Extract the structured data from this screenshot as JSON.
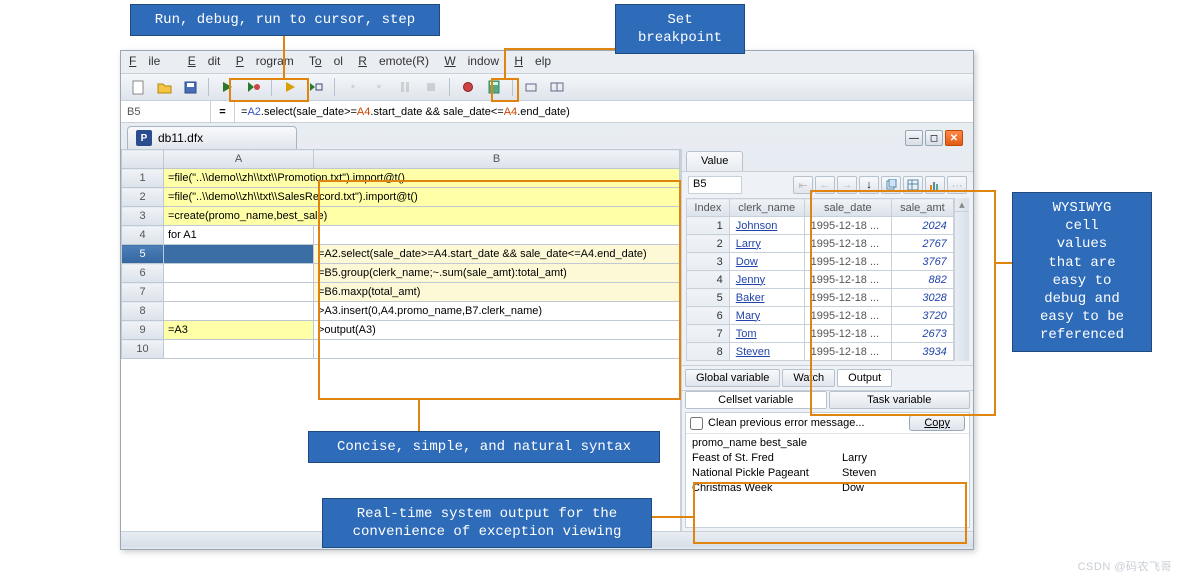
{
  "callouts": {
    "run_debug": "Run, debug, run to cursor, step",
    "breakpoint": "Set\nbreakpoint",
    "wysiwyg": "WYSIWYG\ncell\nvalues\nthat are\neasy to\ndebug and\neasy to be\nreferenced",
    "syntax": "Concise, simple, and natural syntax",
    "output": "Real-time system output for the\nconvenience of exception viewing"
  },
  "menu": {
    "file": "File",
    "edit": "Edit",
    "program": "Program",
    "tool": "Tool",
    "remote": "Remote(R)",
    "window": "Window",
    "help": "Help"
  },
  "formula_bar": {
    "cell": "B5",
    "eq": "=",
    "expr_prefix": "=",
    "a": "A2",
    ".t1": ".select(sale_date>=",
    "b": "A4",
    ".t2": ".start_date && sale_date<=",
    "c": "A4",
    ".t3": ".end_date)"
  },
  "doc_tab": "db11.dfx",
  "sheet": {
    "columns": [
      "A",
      "B"
    ],
    "rows": [
      {
        "n": "1",
        "A": "=file(\"..\\\\demo\\\\zh\\\\txt\\\\Promotion.txt\").import@t()",
        "B": "",
        "styleA": "yA",
        "styleB": ""
      },
      {
        "n": "2",
        "A": "=file(\"..\\\\demo\\\\zh\\\\txt\\\\SalesRecord.txt\").import@t()",
        "B": "",
        "styleA": "yA",
        "styleB": ""
      },
      {
        "n": "3",
        "A": "=create(promo_name,best_sale)",
        "B": "",
        "styleA": "yA",
        "styleB": ""
      },
      {
        "n": "4",
        "A": "for A1",
        "B": "",
        "styleA": "",
        "styleB": ""
      },
      {
        "n": "5",
        "A": "",
        "B": "=A2.select(sale_date>=A4.start_date && sale_date<=A4.end_date)",
        "styleA": "sel",
        "styleB": "yB",
        "rowsel": true
      },
      {
        "n": "6",
        "A": "",
        "B": "=B5.group(clerk_name;~.sum(sale_amt):total_amt)",
        "styleA": "",
        "styleB": "yB"
      },
      {
        "n": "7",
        "A": "",
        "B": "=B6.maxp(total_amt)",
        "styleA": "",
        "styleB": "yB"
      },
      {
        "n": "8",
        "A": "",
        "B": ">A3.insert(0,A4.promo_name,B7.clerk_name)",
        "styleA": "",
        "styleB": ""
      },
      {
        "n": "9",
        "A": "=A3",
        "B": ">output(A3)",
        "styleA": "yA",
        "styleB": ""
      },
      {
        "n": "10",
        "A": "",
        "B": "",
        "styleA": "",
        "styleB": ""
      }
    ]
  },
  "value_panel": {
    "tab": "Value",
    "cell": "B5",
    "columns": [
      "Index",
      "clerk_name",
      "sale_date",
      "sale_amt"
    ],
    "rows": [
      {
        "i": 1,
        "n": "Johnson",
        "d": "1995-12-18 ...",
        "a": 2024
      },
      {
        "i": 2,
        "n": "Larry",
        "d": "1995-12-18 ...",
        "a": 2767
      },
      {
        "i": 3,
        "n": "Dow",
        "d": "1995-12-18 ...",
        "a": 3767
      },
      {
        "i": 4,
        "n": "Jenny",
        "d": "1995-12-18 ...",
        "a": 882
      },
      {
        "i": 5,
        "n": "Baker",
        "d": "1995-12-18 ...",
        "a": 3028
      },
      {
        "i": 6,
        "n": "Mary",
        "d": "1995-12-18 ...",
        "a": 3720
      },
      {
        "i": 7,
        "n": "Tom",
        "d": "1995-12-18 ...",
        "a": 2673
      },
      {
        "i": 8,
        "n": "Steven",
        "d": "1995-12-18 ...",
        "a": 3934
      }
    ]
  },
  "sub_tabs": {
    "global": "Global variable",
    "watch": "Watch",
    "output": "Output",
    "cellset": "Cellset variable",
    "task": "Task variable"
  },
  "output_panel": {
    "clean": "Clean previous error message...",
    "copy": "Copy",
    "header": "promo_name   best_sale",
    "rows": [
      {
        "p": "Feast of St. Fred",
        "b": "Larry"
      },
      {
        "p": "National Pickle Pageant",
        "b": "Steven"
      },
      {
        "p": "Christmas Week",
        "b": "Dow"
      }
    ]
  },
  "watermark": "CSDN @码农飞哥",
  "colors": {
    "accent_orange": "#e08410",
    "callout_blue": "#2e6bb8",
    "cell_yellow_a": "#ffffa8",
    "cell_yellow_b": "#fdf9d6",
    "sel_blue": "#3b6ea5"
  }
}
